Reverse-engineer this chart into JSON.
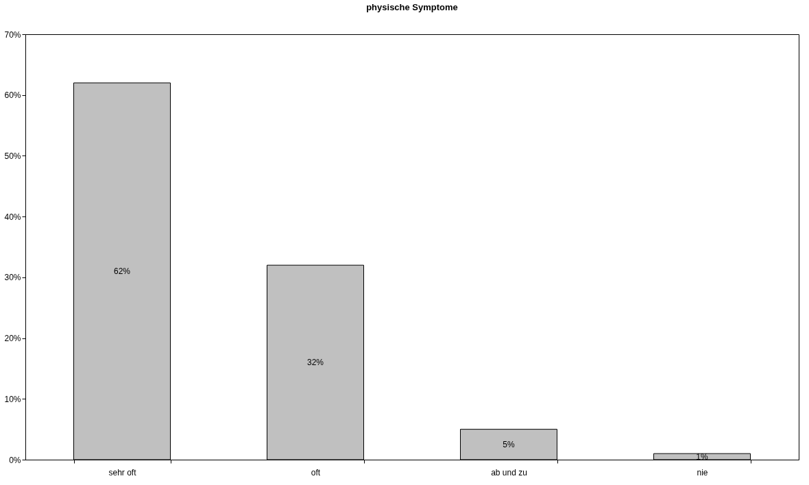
{
  "chart_data": {
    "type": "bar",
    "title": "physische Symptome",
    "categories": [
      "sehr oft",
      "oft",
      "ab und zu",
      "nie"
    ],
    "values": [
      62,
      32,
      5,
      1
    ],
    "value_labels": [
      "62%",
      "32%",
      "5%",
      "1%"
    ],
    "color": "#c0c0c0",
    "ylim": [
      0,
      70
    ],
    "yticks": [
      {
        "value": 0,
        "label": "0%"
      },
      {
        "value": 10,
        "label": "10%"
      },
      {
        "value": 20,
        "label": "20%"
      },
      {
        "value": 30,
        "label": "30%"
      },
      {
        "value": 40,
        "label": "40%"
      },
      {
        "value": 50,
        "label": "50%"
      },
      {
        "value": 60,
        "label": "60%"
      },
      {
        "value": 70,
        "label": "70%"
      }
    ],
    "grid": false
  }
}
